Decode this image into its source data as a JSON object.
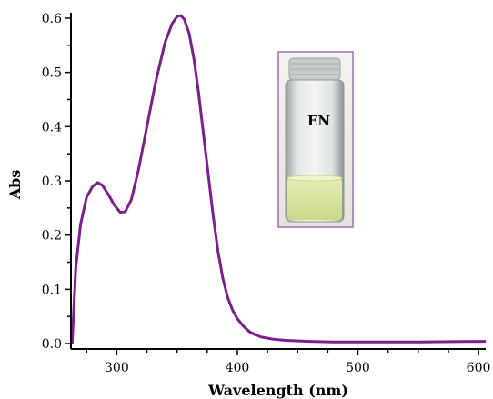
{
  "chart_data": {
    "type": "line",
    "title": "",
    "xlabel": "Wavelength (nm)",
    "ylabel": "Abs",
    "xlim": [
      262,
      606
    ],
    "ylim": [
      -0.01,
      0.61
    ],
    "xticks": [
      300,
      400,
      500,
      600
    ],
    "yticks": [
      0.0,
      0.1,
      0.2,
      0.3,
      0.4,
      0.5,
      0.6
    ],
    "ytick_labels": [
      "0.0",
      "0.1",
      "0.2",
      "0.3",
      "0.4",
      "0.5",
      "0.6"
    ],
    "grid": false,
    "series": [
      {
        "color": "#7b1f8c",
        "x": [
          263,
          266,
          270,
          275,
          280,
          284,
          288,
          293,
          298,
          303,
          307,
          312,
          318,
          325,
          332,
          340,
          346,
          350,
          353,
          356,
          360,
          364,
          368,
          372,
          376,
          380,
          384,
          388,
          392,
          396,
          400,
          405,
          410,
          415,
          420,
          430,
          440,
          460,
          480,
          500,
          550,
          606
        ],
        "y": [
          0.0,
          0.14,
          0.22,
          0.27,
          0.29,
          0.297,
          0.292,
          0.275,
          0.255,
          0.242,
          0.243,
          0.265,
          0.32,
          0.4,
          0.48,
          0.555,
          0.59,
          0.603,
          0.605,
          0.598,
          0.572,
          0.525,
          0.46,
          0.385,
          0.31,
          0.235,
          0.17,
          0.12,
          0.085,
          0.062,
          0.046,
          0.032,
          0.022,
          0.016,
          0.012,
          0.008,
          0.006,
          0.004,
          0.003,
          0.003,
          0.003,
          0.004
        ]
      }
    ],
    "inset": {
      "label": "EN",
      "frame_color": "#9b6fb5"
    }
  }
}
